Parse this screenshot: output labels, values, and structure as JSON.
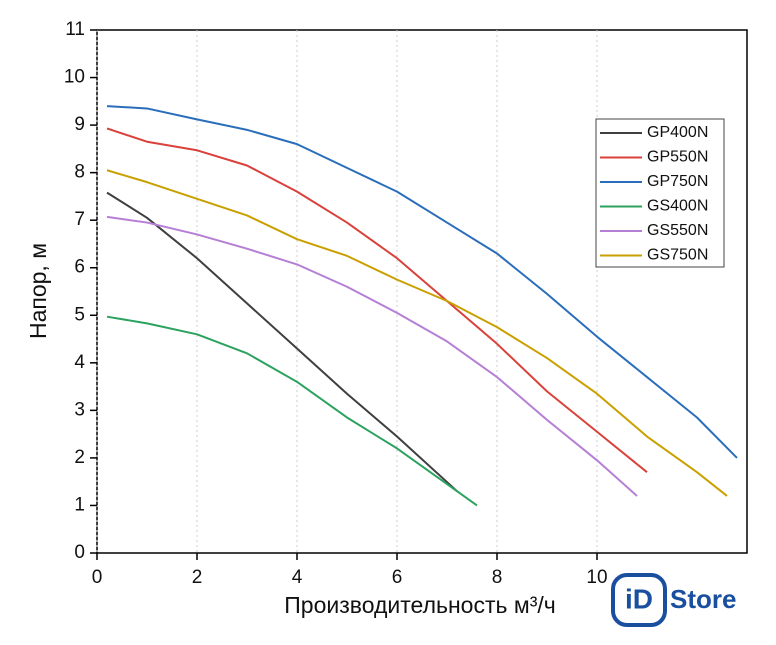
{
  "chart_data": {
    "type": "line",
    "xlabel": "Производительность м³/ч",
    "ylabel": "Напор, м",
    "xlim": [
      0,
      13
    ],
    "xticks": [
      0,
      2,
      4,
      6,
      8,
      10
    ],
    "ylim": [
      0,
      11
    ],
    "yticks": [
      0,
      1,
      2,
      3,
      4,
      5,
      6,
      7,
      8,
      9,
      10,
      11
    ],
    "grid": "x",
    "legend": "upper right",
    "series": [
      {
        "name": "GP400N",
        "color": "#3f3f3f",
        "x": [
          0.2,
          1,
          2,
          3,
          4,
          5,
          6,
          7.2
        ],
        "values": [
          7.58,
          7.05,
          6.2,
          5.25,
          4.3,
          3.35,
          2.45,
          1.3
        ]
      },
      {
        "name": "GP550N",
        "color": "#d9413a",
        "x": [
          0.2,
          1,
          2,
          3,
          4,
          5,
          6,
          7,
          8,
          9,
          10,
          11
        ],
        "values": [
          8.93,
          8.65,
          8.47,
          8.15,
          7.6,
          6.95,
          6.2,
          5.3,
          4.4,
          3.4,
          2.55,
          1.7
        ]
      },
      {
        "name": "GP750N",
        "color": "#2a6ebb",
        "x": [
          0.2,
          1,
          2,
          3,
          4,
          5,
          6,
          7,
          8,
          9,
          10,
          11,
          12,
          12.8
        ],
        "values": [
          9.4,
          9.35,
          9.12,
          8.9,
          8.6,
          8.1,
          7.6,
          6.95,
          6.3,
          5.45,
          4.55,
          3.7,
          2.85,
          2.0
        ]
      },
      {
        "name": "GS400N",
        "color": "#2ca25f",
        "x": [
          0.2,
          1,
          2,
          3,
          4,
          5,
          6,
          7.6
        ],
        "values": [
          4.97,
          4.83,
          4.6,
          4.2,
          3.6,
          2.85,
          2.2,
          1.0
        ]
      },
      {
        "name": "GS550N",
        "color": "#b57fd6",
        "x": [
          0.2,
          1,
          2,
          3,
          4,
          5,
          6,
          7,
          8,
          9,
          10,
          10.8
        ],
        "values": [
          7.07,
          6.95,
          6.7,
          6.4,
          6.07,
          5.6,
          5.05,
          4.45,
          3.7,
          2.8,
          1.95,
          1.2
        ]
      },
      {
        "name": "GS750N",
        "color": "#c9a000",
        "x": [
          0.2,
          1,
          2,
          3,
          4,
          5,
          6,
          7,
          8,
          9,
          10,
          11,
          12,
          12.6
        ],
        "values": [
          8.05,
          7.8,
          7.45,
          7.1,
          6.6,
          6.25,
          5.75,
          5.3,
          4.75,
          4.1,
          3.35,
          2.45,
          1.7,
          1.2
        ]
      }
    ]
  },
  "logo": {
    "mark": "iD",
    "text": "Store"
  }
}
